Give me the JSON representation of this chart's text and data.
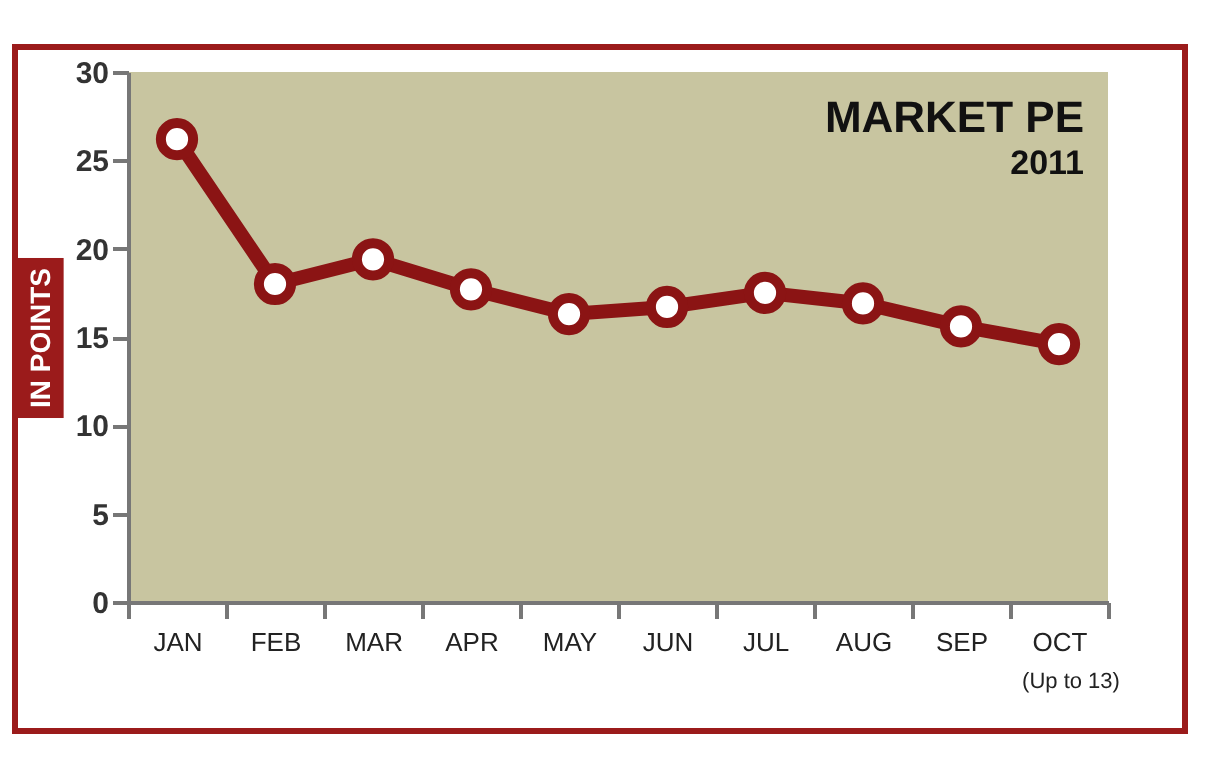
{
  "chart_data": {
    "type": "line",
    "title": "MARKET PE",
    "subtitle": "2011",
    "ylabel": "IN POINTS",
    "categories": [
      "JAN",
      "FEB",
      "MAR",
      "APR",
      "MAY",
      "JUN",
      "JUL",
      "AUG",
      "SEP",
      "OCT"
    ],
    "series": [
      {
        "color": "#8b1414",
        "values": [
          26.2,
          18.0,
          19.4,
          17.7,
          16.3,
          16.7,
          17.5,
          16.9,
          15.6,
          14.6
        ]
      }
    ],
    "ylim": [
      0,
      30
    ],
    "yticks": [
      0,
      5,
      10,
      15,
      20,
      25,
      30
    ],
    "grid": false,
    "marker": "circle",
    "line_style": "solid",
    "legend": false,
    "annotations": [
      "(Up to 13)"
    ]
  }
}
